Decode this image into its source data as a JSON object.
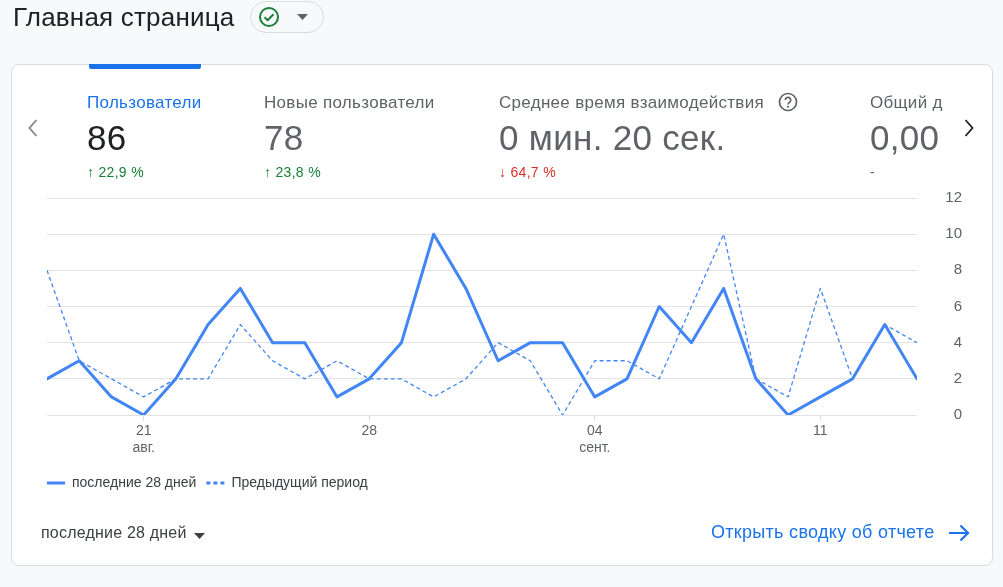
{
  "chart_data": {
    "type": "line",
    "title": "Главная страница",
    "annotations": [
      "Пользователи",
      "86",
      "↑ 22,9 %",
      "Новые пользователи",
      "78",
      "↑ 23,8 %",
      "Среднее время взаимодействия",
      "0 мин. 20 сек.",
      "↓ 64,7 %",
      "Общий д",
      "0,00",
      "-",
      "последние 28 дней",
      "Открыть сводку об отчете"
    ],
    "x": [
      "--08-18",
      "--08-19",
      "--08-20",
      "--08-21",
      "--08-22",
      "--08-23",
      "--08-24",
      "--08-25",
      "--08-26",
      "--08-27",
      "--08-28",
      "--08-29",
      "--08-30",
      "--08-31",
      "--09-01",
      "--09-02",
      "--09-03",
      "--09-04",
      "--09-05",
      "--09-06",
      "--09-07",
      "--09-08",
      "--09-09",
      "--09-10",
      "--09-11",
      "--09-12",
      "--09-13",
      "--09-14"
    ],
    "xlim": [
      "--08-18",
      "--09-14"
    ],
    "xticks": [
      {
        "value": "--08-21",
        "label": "21\nавг."
      },
      {
        "value": "--08-28",
        "label": "28"
      },
      {
        "value": "--09-04",
        "label": "04\nсент."
      },
      {
        "value": "--09-11",
        "label": "11"
      }
    ],
    "ylim": [
      0,
      12
    ],
    "yticks": [
      0,
      2,
      4,
      6,
      8,
      10,
      12
    ],
    "series": [
      {
        "name": "последние 28 дней",
        "color": "#4285f4",
        "line_style": "solid",
        "values": [
          2,
          3,
          1,
          0,
          2,
          5,
          7,
          4,
          4,
          1,
          2,
          4,
          10,
          7,
          3,
          4,
          4,
          1,
          2,
          6,
          4,
          7,
          2,
          0,
          1,
          2,
          5,
          2
        ]
      },
      {
        "name": "Предыдущий период",
        "color": "#4285f4",
        "line_style": "dashed",
        "values": [
          8,
          3,
          2,
          1,
          2,
          2,
          5,
          3,
          2,
          3,
          2,
          2,
          1,
          2,
          4,
          3,
          0,
          3,
          3,
          2,
          6,
          10,
          2,
          1,
          7,
          2,
          5,
          4
        ]
      }
    ],
    "grid": "y",
    "legend": "bottom left",
    "marker": "none"
  }
}
